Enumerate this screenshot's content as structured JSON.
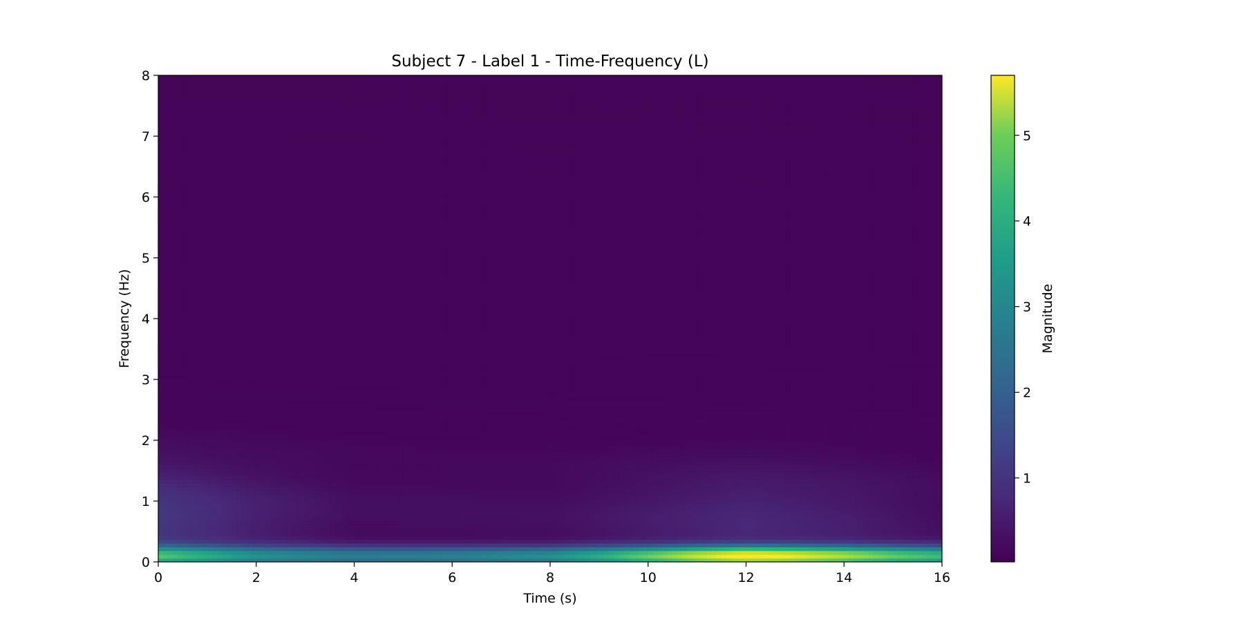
{
  "chart_data": {
    "type": "heatmap",
    "title": "Subject 7 - Label 1 - Time-Frequency (L)",
    "xlabel": "Time (s)",
    "ylabel": "Frequency (Hz)",
    "xlim": [
      0,
      16
    ],
    "ylim": [
      0,
      8
    ],
    "xticks": [
      "0",
      "2",
      "4",
      "6",
      "8",
      "10",
      "12",
      "14",
      "16"
    ],
    "yticks": [
      "0",
      "1",
      "2",
      "3",
      "4",
      "5",
      "6",
      "7",
      "8"
    ],
    "colormap": "viridis",
    "colorbar": {
      "label": "Magnitude",
      "range": [
        0.02,
        5.7
      ],
      "ticks": [
        "1",
        "2",
        "3",
        "4",
        "5"
      ]
    },
    "grid": false,
    "band_profile": {
      "description": "magnitude of the lowest-frequency band (~0.1 Hz) over time",
      "time": [
        0,
        2,
        4,
        6,
        8,
        9,
        10,
        11,
        12,
        13,
        14,
        15,
        16
      ],
      "magnitude": [
        3.6,
        2.6,
        2.3,
        2.4,
        2.8,
        3.4,
        4.2,
        5.0,
        5.6,
        5.3,
        4.8,
        4.2,
        3.8
      ]
    },
    "low_freq_spread": {
      "description": "secondary magnitude in the 0.3-2.5 Hz region over time",
      "time": [
        0,
        2,
        4,
        8,
        12,
        14,
        16
      ],
      "magnitude": [
        0.9,
        0.45,
        0.15,
        0.15,
        0.55,
        0.4,
        0.15
      ]
    }
  }
}
